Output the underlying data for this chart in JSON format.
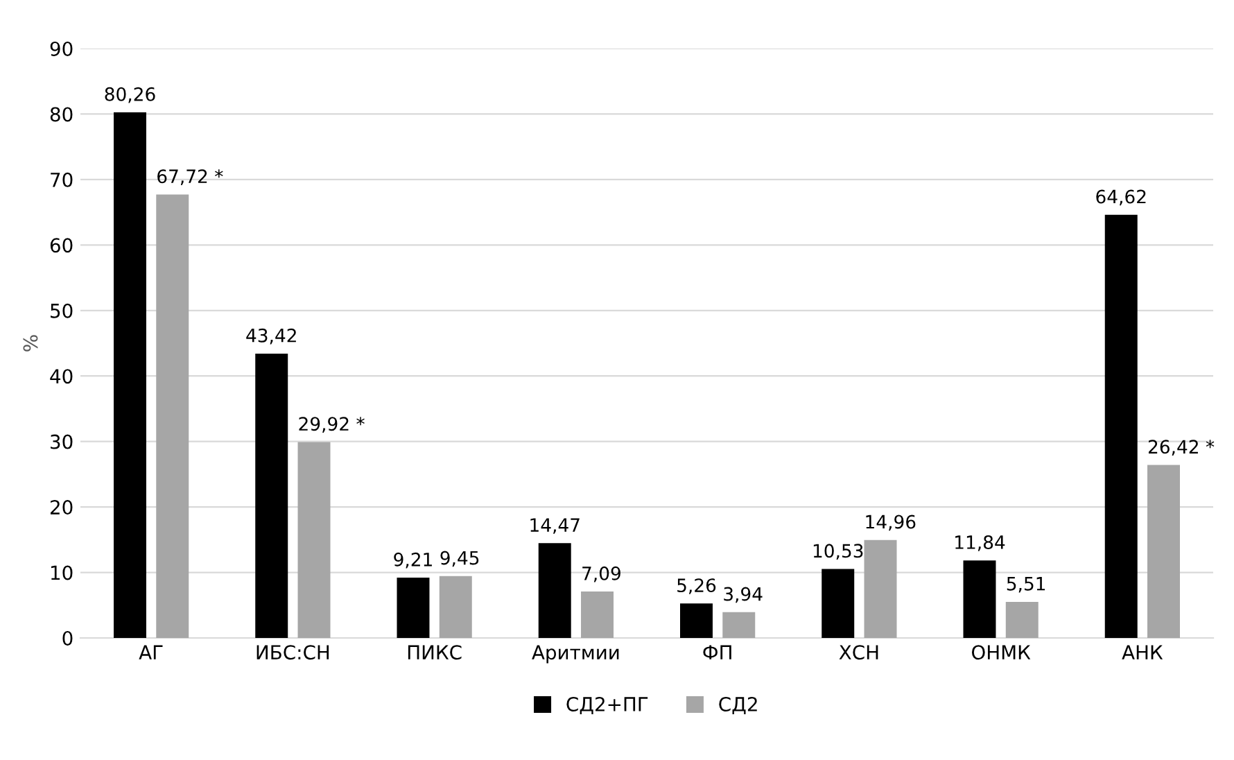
{
  "chart_data": {
    "type": "bar",
    "ylabel": "%",
    "categories": [
      "АГ",
      "ИБС:СН",
      "ПИКС",
      "Аритмии",
      "ФП",
      "ХСН",
      "ОНМК",
      "АНК"
    ],
    "series": [
      {
        "name": "СД2+ПГ",
        "color": "#000000",
        "values": [
          80.26,
          43.42,
          9.21,
          14.47,
          5.26,
          10.53,
          11.84,
          64.62
        ],
        "value_labels": [
          "80,26",
          "43,42",
          "9,21",
          "14,47",
          "5,26",
          "10,53",
          "11,84",
          "64,62"
        ]
      },
      {
        "name": "СД2",
        "color": "#a6a6a6",
        "values": [
          67.72,
          29.92,
          9.45,
          7.09,
          3.94,
          14.96,
          5.51,
          26.42
        ],
        "value_labels": [
          "67,72 *",
          "29,92 *",
          "9,45",
          "7,09",
          "3,94",
          "14,96",
          "5,51",
          "26,42 *"
        ]
      }
    ],
    "ylim": [
      0,
      90
    ],
    "yticks": [
      0,
      10,
      20,
      30,
      40,
      50,
      60,
      70,
      80,
      90
    ],
    "grid": "y",
    "legend": "bottom"
  }
}
